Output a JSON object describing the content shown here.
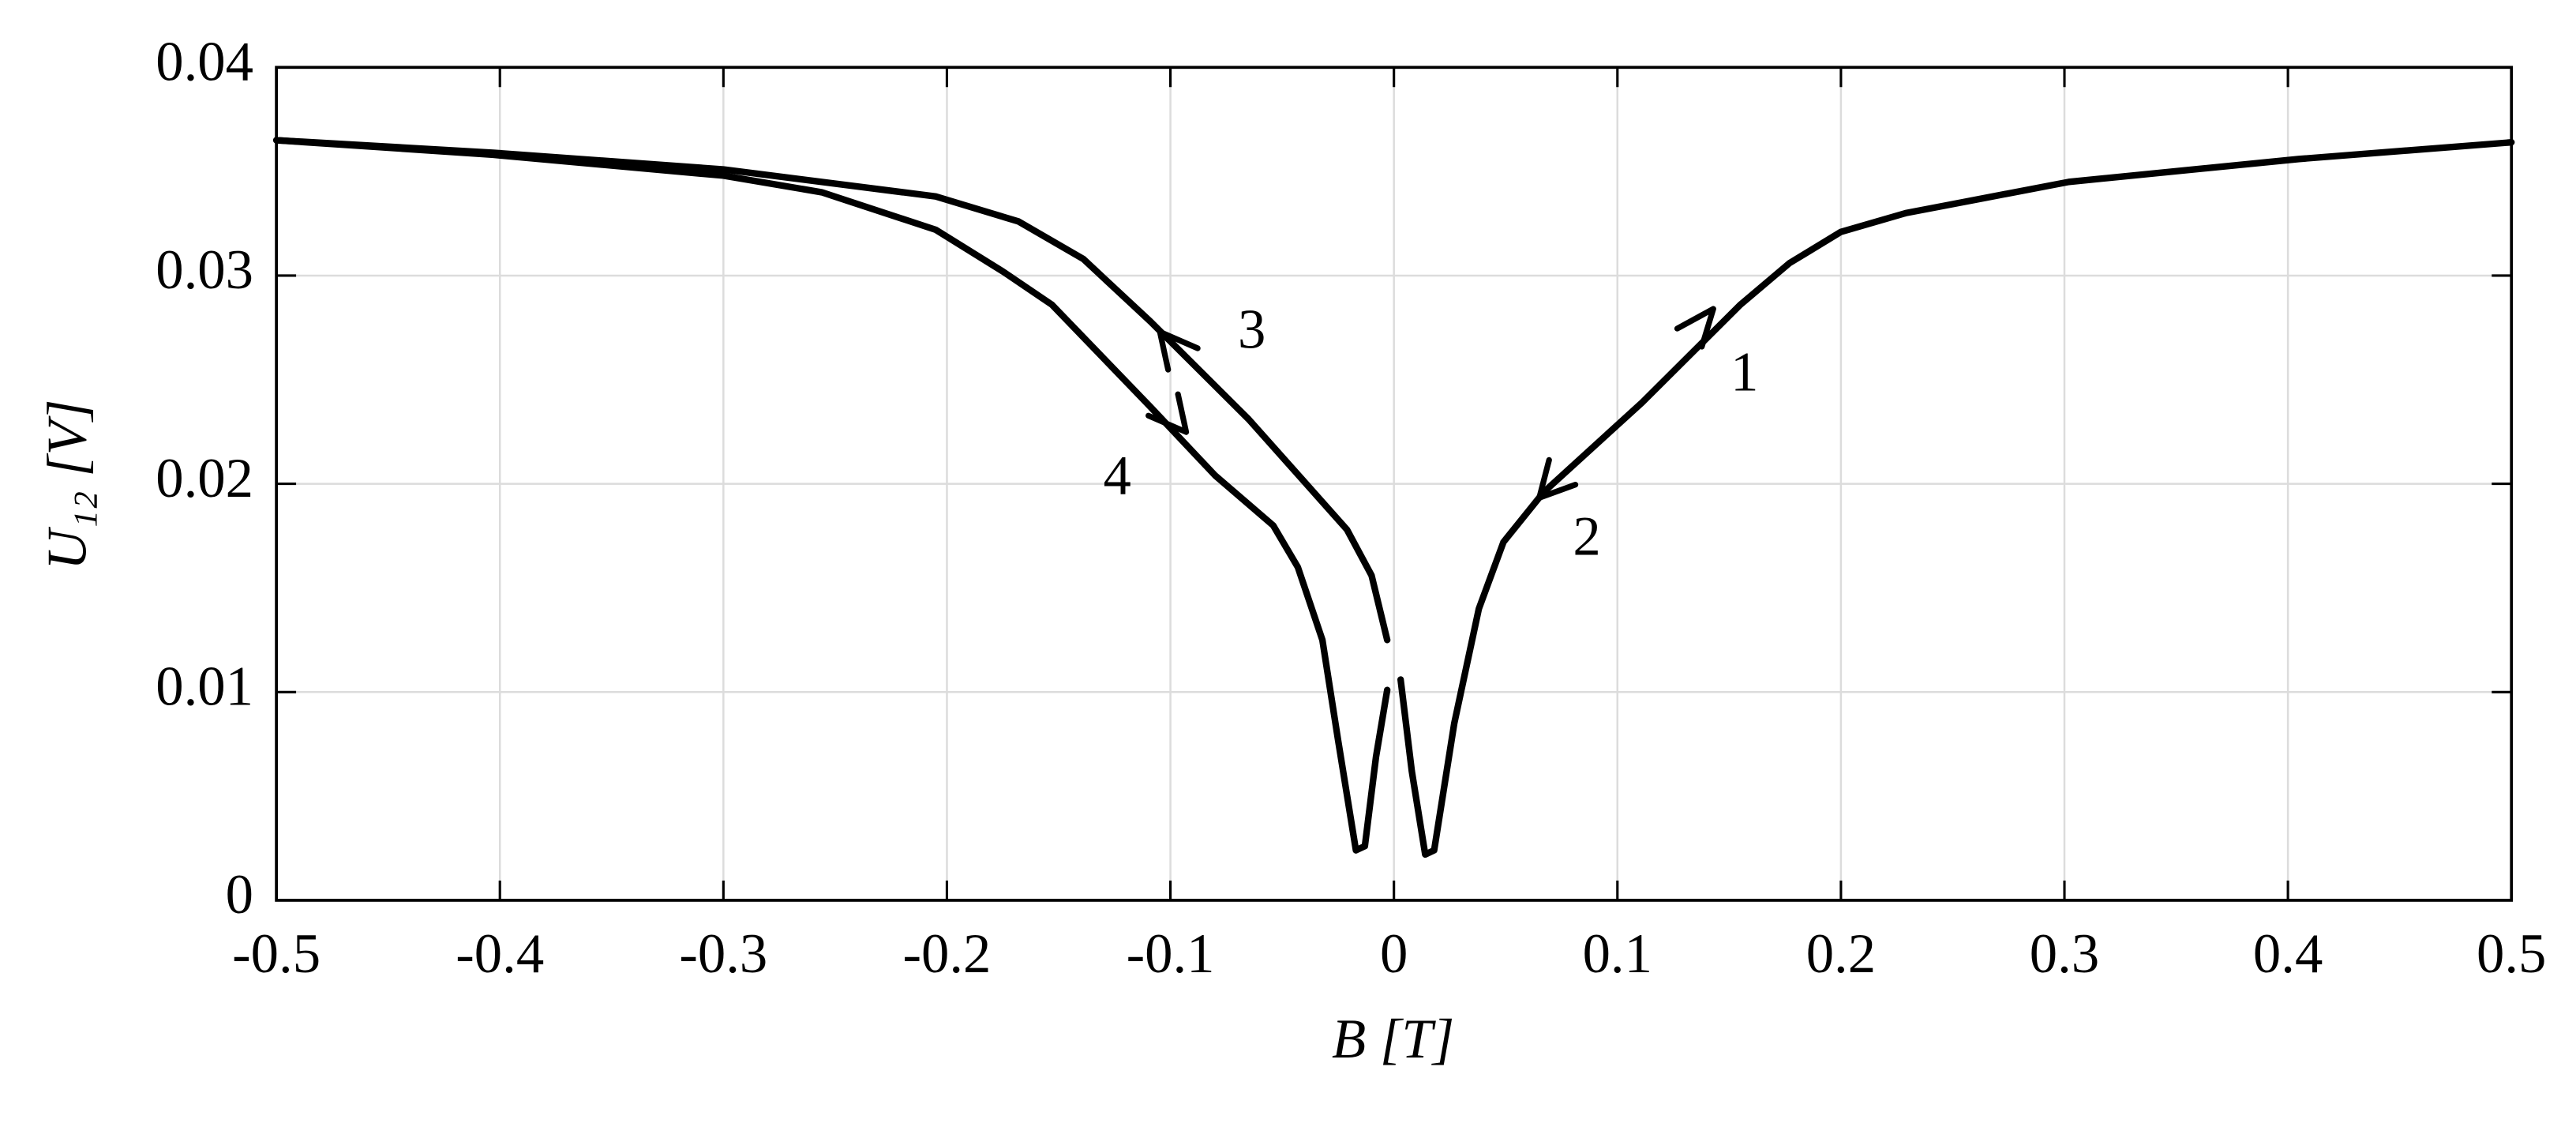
{
  "chart_data": {
    "type": "line",
    "xlabel": "B [T]",
    "ylabel": "U₁₂ [V]",
    "xlim": [
      -0.5,
      0.5
    ],
    "xticks": [
      -0.5,
      -0.4,
      -0.3,
      -0.2,
      -0.1,
      0,
      0.1,
      0.2,
      0.3,
      0.4,
      0.5
    ],
    "ylim": [
      0,
      0.04
    ],
    "yticks": [
      0,
      0.01,
      0.02,
      0.03,
      0.04
    ],
    "grid": true,
    "annotations": [
      "1",
      "2",
      "3",
      "4"
    ],
    "series": [
      {
        "color": "#000000",
        "x": [
          0.5,
          0.405,
          0.302,
          0.229,
          0.2,
          0.177,
          0.155,
          0.111,
          0.067,
          0.049,
          0.038,
          0.027,
          0.018,
          0.014,
          0.008,
          0.003
        ],
        "values": [
          0.0364,
          0.0356,
          0.0345,
          0.033,
          0.0321,
          0.0306,
          0.0286,
          0.0239,
          0.0196,
          0.0172,
          0.014,
          0.0085,
          0.0024,
          0.0022,
          0.0062,
          0.0106
        ]
      },
      {
        "color": "#000000",
        "x": [
          -0.003,
          -0.01,
          -0.021,
          -0.065,
          -0.109,
          -0.139,
          -0.168,
          -0.205,
          -0.3,
          -0.403,
          -0.5
        ],
        "values": [
          0.0125,
          0.0156,
          0.0178,
          0.0231,
          0.0278,
          0.0308,
          0.0326,
          0.0338,
          0.0351,
          0.0359,
          0.0365
        ]
      },
      {
        "color": "#000000",
        "x": [
          -0.5,
          -0.403,
          -0.3,
          -0.256,
          -0.205,
          -0.175,
          -0.153,
          -0.109,
          -0.08,
          -0.054,
          -0.043,
          -0.032,
          -0.025,
          -0.017,
          -0.013,
          -0.008,
          -0.003
        ],
        "values": [
          0.0365,
          0.0358,
          0.0348,
          0.034,
          0.0322,
          0.0302,
          0.0286,
          0.0237,
          0.0204,
          0.018,
          0.016,
          0.0125,
          0.0077,
          0.0024,
          0.0026,
          0.0069,
          0.0101
        ]
      }
    ]
  }
}
